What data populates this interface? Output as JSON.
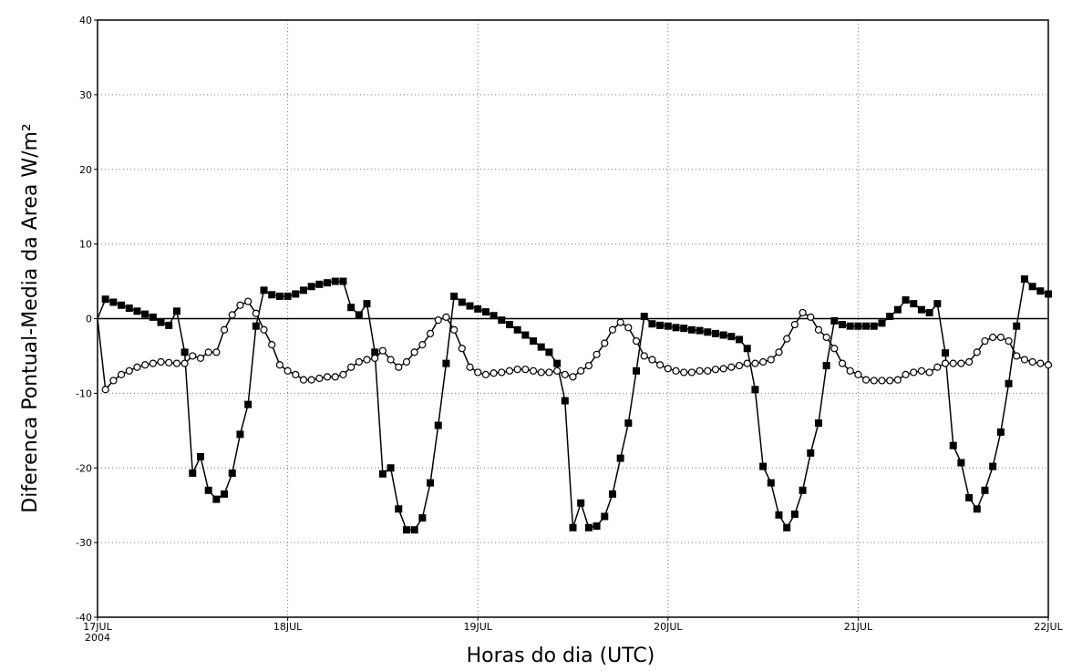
{
  "chart_data": {
    "type": "line",
    "x_label": "Horas do dia (UTC)",
    "y_label": "Diferenca Pontual-Media da Area W/m²",
    "x": [
      0,
      1,
      2,
      3,
      4,
      5,
      6,
      7,
      8,
      9,
      10,
      11,
      12,
      13,
      14,
      15,
      16,
      17,
      18,
      19,
      20,
      21,
      22,
      23,
      24,
      25,
      26,
      27,
      28,
      29,
      30,
      31,
      32,
      33,
      34,
      35,
      36,
      37,
      38,
      39,
      40,
      41,
      42,
      43,
      44,
      45,
      46,
      47,
      48,
      49,
      50,
      51,
      52,
      53,
      54,
      55,
      56,
      57,
      58,
      59,
      60,
      61,
      62,
      63,
      64,
      65,
      66,
      67,
      68,
      69,
      70,
      71,
      72,
      73,
      74,
      75,
      76,
      77,
      78,
      79,
      80,
      81,
      82,
      83,
      84,
      85,
      86,
      87,
      88,
      89,
      90,
      91,
      92,
      93,
      94,
      95,
      96,
      97,
      98,
      99,
      100,
      101,
      102,
      103,
      104,
      105,
      106,
      107,
      108,
      109,
      110,
      111,
      112,
      113,
      114,
      115,
      116,
      117,
      118,
      119,
      120
    ],
    "xlim": [
      0,
      120
    ],
    "xticks": [
      {
        "value": 0,
        "label": "17JUL"
      },
      {
        "value": 24,
        "label": "18JUL"
      },
      {
        "value": 48,
        "label": "19JUL"
      },
      {
        "value": 72,
        "label": "20JUL"
      },
      {
        "value": 96,
        "label": "21JUL"
      },
      {
        "value": 120,
        "label": "22JUL"
      }
    ],
    "year_label": "2004",
    "ylim": [
      -40,
      40
    ],
    "yticks": [
      -40,
      -30,
      -20,
      -10,
      0,
      10,
      20,
      30,
      40
    ],
    "grid": true,
    "zero_line": true,
    "series": [
      {
        "marker": "filled-square",
        "color": "#000000",
        "values": [
          0,
          2.6,
          2.2,
          1.8,
          1.4,
          1.0,
          0.6,
          0.2,
          -0.5,
          -0.9,
          1.0,
          -4.5,
          -20.7,
          -18.5,
          -23,
          -24.2,
          -23.5,
          -20.7,
          -15.5,
          -11.5,
          -1,
          3.8,
          3.2,
          3.0,
          3.0,
          3.3,
          3.8,
          4.3,
          4.6,
          4.8,
          5.0,
          5.0,
          1.5,
          0.5,
          2.0,
          -4.5,
          -20.8,
          -20,
          -25.5,
          -28.3,
          -28.3,
          -26.7,
          -22,
          -14.3,
          -6,
          3.0,
          2.2,
          1.7,
          1.3,
          0.9,
          0.4,
          -0.2,
          -0.8,
          -1.5,
          -2.2,
          -3.0,
          -3.8,
          -4.5,
          -6,
          -11,
          -28,
          -24.7,
          -28,
          -27.8,
          -26.5,
          -23.5,
          -18.7,
          -14,
          -7,
          0.3,
          -0.7,
          -0.9,
          -1.0,
          -1.2,
          -1.3,
          -1.5,
          -1.6,
          -1.8,
          -2.0,
          -2.2,
          -2.4,
          -2.8,
          -4,
          -9.5,
          -19.8,
          -22,
          -26.3,
          -28,
          -26.2,
          -23,
          -18,
          -14,
          -6.3,
          -0.3,
          -0.8,
          -1.0,
          -1.0,
          -1.0,
          -1.0,
          -0.6,
          0.3,
          1.2,
          2.5,
          2.0,
          1.2,
          0.8,
          2.0,
          -4.6,
          -17,
          -19.3,
          -24,
          -25.5,
          -23,
          -19.8,
          -15.2,
          -8.7,
          -1,
          5.3,
          4.3,
          3.7,
          3.3
        ]
      },
      {
        "marker": "open-circle",
        "color": "#000000",
        "values": [
          0,
          -9.5,
          -8.3,
          -7.5,
          -7,
          -6.5,
          -6.2,
          -6,
          -5.8,
          -5.9,
          -6,
          -6,
          -5,
          -5.3,
          -4.5,
          -4.5,
          -1.5,
          0.5,
          1.8,
          2.3,
          0.7,
          -1.5,
          -3.5,
          -6.2,
          -7,
          -7.5,
          -8.2,
          -8.2,
          -8,
          -7.8,
          -7.8,
          -7.5,
          -6.5,
          -5.8,
          -5.5,
          -5.3,
          -4.3,
          -5.5,
          -6.5,
          -5.8,
          -4.5,
          -3.5,
          -2,
          -0.2,
          0.2,
          -1.5,
          -4,
          -6.5,
          -7.2,
          -7.5,
          -7.3,
          -7.2,
          -7,
          -6.8,
          -6.8,
          -7,
          -7.2,
          -7.2,
          -7,
          -7.5,
          -7.8,
          -7,
          -6.3,
          -4.8,
          -3.3,
          -1.5,
          -0.5,
          -1.2,
          -3,
          -5,
          -5.5,
          -6.2,
          -6.7,
          -7,
          -7.2,
          -7.2,
          -7,
          -7,
          -6.8,
          -6.7,
          -6.5,
          -6.3,
          -6,
          -6,
          -5.8,
          -5.5,
          -4.5,
          -2.7,
          -0.8,
          0.8,
          0.2,
          -1.5,
          -2.5,
          -4,
          -6,
          -7,
          -7.5,
          -8.2,
          -8.3,
          -8.3,
          -8.3,
          -8.2,
          -7.5,
          -7.2,
          -7,
          -7.2,
          -6.5,
          -6,
          -6,
          -6,
          -5.8,
          -4.5,
          -3,
          -2.5,
          -2.5,
          -3,
          -5,
          -5.5,
          -5.8,
          -6,
          -6.2
        ]
      }
    ]
  }
}
